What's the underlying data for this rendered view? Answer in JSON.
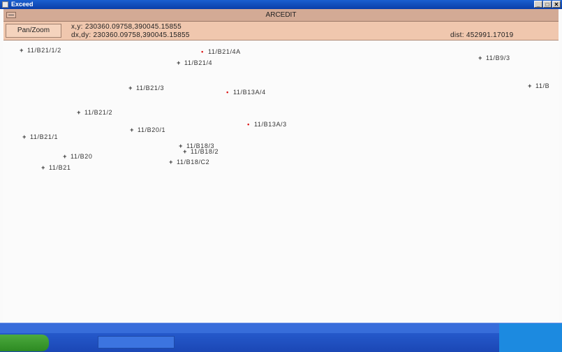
{
  "window": {
    "title": "Exceed",
    "controls": [
      "_",
      "□",
      "✕"
    ]
  },
  "app": {
    "title": "ARCEDIT"
  },
  "info": {
    "mode_button": "Pan/Zoom",
    "xy_line": "x,y: 230360.09758,390045.15855",
    "dxdy_line": "dx,dy: 230360.09758,390045.15855",
    "dist_line": "dist: 452991.17019"
  },
  "points": [
    {
      "label": "11/B21/1/2",
      "marker": "+",
      "red": false
    },
    {
      "label": "11/B21/4A",
      "marker": "•",
      "red": true
    },
    {
      "label": "11/B21/4",
      "marker": "+",
      "red": false
    },
    {
      "label": "11/B9/3",
      "marker": "+",
      "red": false
    },
    {
      "label": "11/B",
      "marker": "+",
      "red": false
    },
    {
      "label": "11/B21/3",
      "marker": "+",
      "red": false
    },
    {
      "label": "11/B13A/4",
      "marker": "•",
      "red": true
    },
    {
      "label": "11/B21/2",
      "marker": "+",
      "red": false
    },
    {
      "label": "11/B13A/3",
      "marker": "•",
      "red": true
    },
    {
      "label": "11/B20/1",
      "marker": "+",
      "red": false
    },
    {
      "label": "11/B21/1",
      "marker": "+",
      "red": false
    },
    {
      "label": "11/B18/3",
      "marker": "+",
      "red": false
    },
    {
      "label": "11/B18/2",
      "marker": "+",
      "red": false
    },
    {
      "label": "11/B20",
      "marker": "+",
      "red": false
    },
    {
      "label": "11/B18/C2",
      "marker": "+",
      "red": false
    },
    {
      "label": "11/B21",
      "marker": "+",
      "red": false
    }
  ]
}
